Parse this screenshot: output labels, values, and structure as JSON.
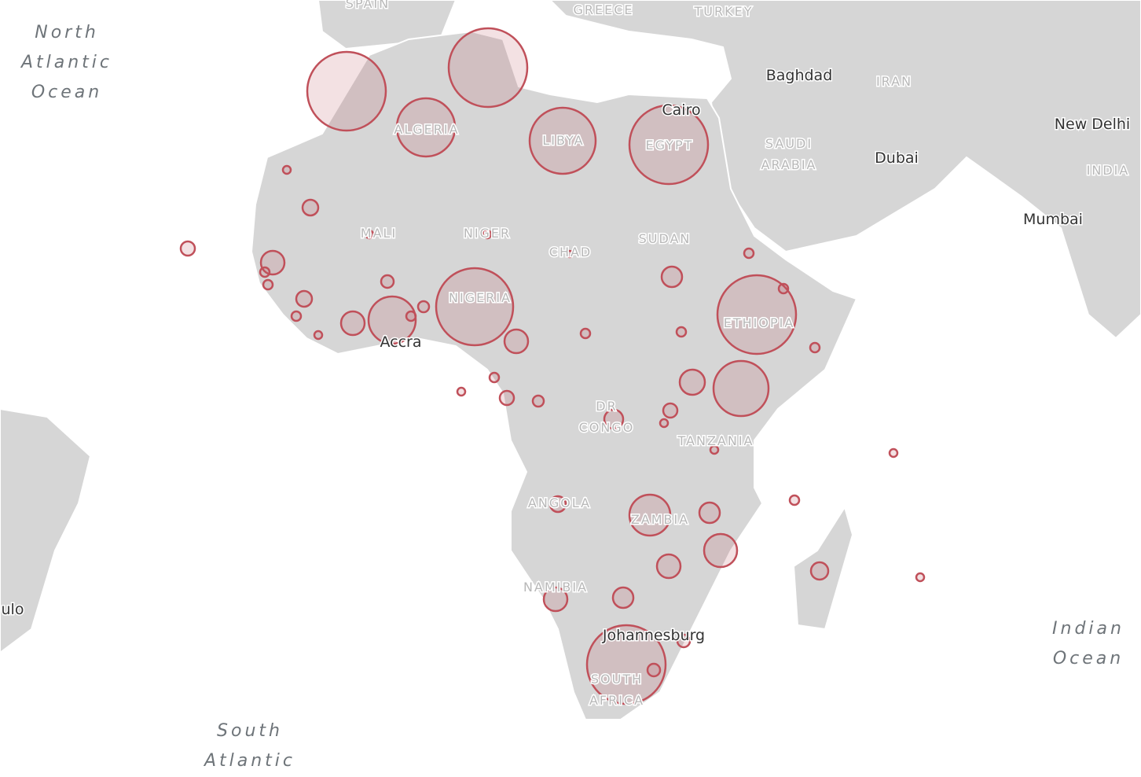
{
  "map": {
    "oceans": [
      [
        "North",
        "Atlantic",
        "Ocean"
      ],
      [
        "South",
        "Atlantic"
      ],
      [
        "Indian",
        "Ocean"
      ]
    ],
    "countries": [
      [
        "SPAIN"
      ],
      [
        "GREECE"
      ],
      [
        "TURKEY"
      ],
      [
        "IRAN"
      ],
      [
        "SAUDI",
        "ARABIA"
      ],
      [
        "INDIA"
      ],
      [
        "ALGERIA"
      ],
      [
        "LIBYA"
      ],
      [
        "EGYPT"
      ],
      [
        "MALI"
      ],
      [
        "NIGER"
      ],
      [
        "CHAD"
      ],
      [
        "SUDAN"
      ],
      [
        "NIGERIA"
      ],
      [
        "ETHIOPIA"
      ],
      [
        "DR",
        "CONGO"
      ],
      [
        "TANZANIA"
      ],
      [
        "ANGOLA"
      ],
      [
        "ZAMBIA"
      ],
      [
        "NAMIBIA"
      ],
      [
        "SOUTH",
        "AFRICA"
      ]
    ],
    "cities": [
      "Baghdad",
      "Cairo",
      "New Delhi",
      "Dubai",
      "Mumbai",
      "Accra",
      "Johannesburg",
      "ulo"
    ],
    "markers": [
      50,
      50,
      37,
      42,
      50,
      5,
      10,
      9,
      15,
      6,
      6,
      10,
      6,
      5,
      15,
      30,
      6,
      7,
      8,
      5,
      5,
      49,
      4,
      15,
      6,
      13,
      6,
      6,
      6,
      50,
      6,
      35,
      16,
      9,
      5,
      12,
      5,
      6,
      5,
      9,
      7,
      5,
      6,
      10,
      26,
      13,
      21,
      15,
      13,
      15,
      11,
      5,
      50,
      8,
      8
    ]
  }
}
